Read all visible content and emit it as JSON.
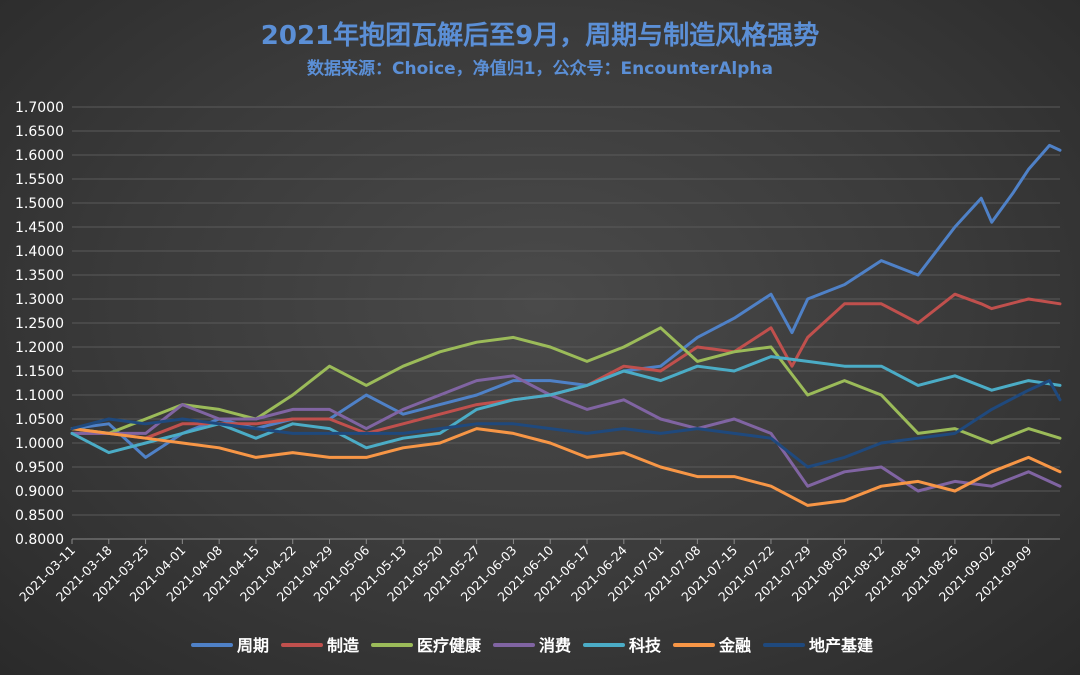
{
  "chart_data": {
    "type": "line",
    "title": "2021年抱团瓦解后至9月，周期与制造风格强势",
    "subtitle": "数据来源：Choice，净值归1，公众号：EncounterAlpha",
    "ylim": [
      0.8,
      1.7
    ],
    "yticks": [
      "0.8000",
      "0.8500",
      "0.9000",
      "0.9500",
      "1.0000",
      "1.0500",
      "1.1000",
      "1.1500",
      "1.2000",
      "1.2500",
      "1.3000",
      "1.3500",
      "1.4000",
      "1.4500",
      "1.5000",
      "1.5500",
      "1.6000",
      "1.6500",
      "1.7000"
    ],
    "x_start": "2021-03-11",
    "x_end": "2021-09-15",
    "xticks": [
      "2021-03-11",
      "2021-03-18",
      "2021-03-25",
      "2021-04-01",
      "2021-04-08",
      "2021-04-15",
      "2021-04-22",
      "2021-04-29",
      "2021-05-06",
      "2021-05-13",
      "2021-05-20",
      "2021-05-27",
      "2021-06-03",
      "2021-06-10",
      "2021-06-17",
      "2021-06-24",
      "2021-07-01",
      "2021-07-08",
      "2021-07-15",
      "2021-07-22",
      "2021-07-29",
      "2021-08-05",
      "2021-08-12",
      "2021-08-19",
      "2021-08-26",
      "2021-09-02",
      "2021-09-09"
    ],
    "legend_position": "bottom",
    "grid": true,
    "series": [
      {
        "name": "周期",
        "color": "#4f81c7",
        "points": [
          [
            "2021-03-11",
            1.03
          ],
          [
            "2021-03-18",
            1.04
          ],
          [
            "2021-03-25",
            0.97
          ],
          [
            "2021-04-01",
            1.02
          ],
          [
            "2021-04-08",
            1.05
          ],
          [
            "2021-04-15",
            1.03
          ],
          [
            "2021-04-22",
            1.05
          ],
          [
            "2021-04-29",
            1.05
          ],
          [
            "2021-05-06",
            1.1
          ],
          [
            "2021-05-13",
            1.06
          ],
          [
            "2021-05-20",
            1.08
          ],
          [
            "2021-05-27",
            1.1
          ],
          [
            "2021-06-03",
            1.13
          ],
          [
            "2021-06-10",
            1.13
          ],
          [
            "2021-06-17",
            1.12
          ],
          [
            "2021-06-24",
            1.15
          ],
          [
            "2021-07-01",
            1.16
          ],
          [
            "2021-07-08",
            1.22
          ],
          [
            "2021-07-15",
            1.26
          ],
          [
            "2021-07-22",
            1.31
          ],
          [
            "2021-07-26",
            1.23
          ],
          [
            "2021-07-29",
            1.3
          ],
          [
            "2021-08-05",
            1.33
          ],
          [
            "2021-08-12",
            1.38
          ],
          [
            "2021-08-19",
            1.35
          ],
          [
            "2021-08-26",
            1.45
          ],
          [
            "2021-08-31",
            1.51
          ],
          [
            "2021-09-02",
            1.46
          ],
          [
            "2021-09-06",
            1.52
          ],
          [
            "2021-09-09",
            1.57
          ],
          [
            "2021-09-13",
            1.62
          ],
          [
            "2021-09-15",
            1.61
          ]
        ]
      },
      {
        "name": "制造",
        "color": "#c0504d",
        "points": [
          [
            "2021-03-11",
            1.02
          ],
          [
            "2021-03-18",
            1.02
          ],
          [
            "2021-03-25",
            1.01
          ],
          [
            "2021-04-01",
            1.04
          ],
          [
            "2021-04-08",
            1.04
          ],
          [
            "2021-04-15",
            1.04
          ],
          [
            "2021-04-22",
            1.05
          ],
          [
            "2021-04-29",
            1.05
          ],
          [
            "2021-05-06",
            1.02
          ],
          [
            "2021-05-13",
            1.04
          ],
          [
            "2021-05-20",
            1.06
          ],
          [
            "2021-05-27",
            1.08
          ],
          [
            "2021-06-03",
            1.09
          ],
          [
            "2021-06-10",
            1.1
          ],
          [
            "2021-06-17",
            1.12
          ],
          [
            "2021-06-24",
            1.16
          ],
          [
            "2021-07-01",
            1.15
          ],
          [
            "2021-07-08",
            1.2
          ],
          [
            "2021-07-15",
            1.19
          ],
          [
            "2021-07-22",
            1.24
          ],
          [
            "2021-07-26",
            1.16
          ],
          [
            "2021-07-29",
            1.22
          ],
          [
            "2021-08-05",
            1.29
          ],
          [
            "2021-08-12",
            1.29
          ],
          [
            "2021-08-19",
            1.25
          ],
          [
            "2021-08-26",
            1.31
          ],
          [
            "2021-08-31",
            1.29
          ],
          [
            "2021-09-02",
            1.28
          ],
          [
            "2021-09-09",
            1.3
          ],
          [
            "2021-09-15",
            1.29
          ]
        ]
      },
      {
        "name": "医疗健康",
        "color": "#9bbb59",
        "points": [
          [
            "2021-03-11",
            1.03
          ],
          [
            "2021-03-18",
            1.02
          ],
          [
            "2021-03-25",
            1.05
          ],
          [
            "2021-04-01",
            1.08
          ],
          [
            "2021-04-08",
            1.07
          ],
          [
            "2021-04-15",
            1.05
          ],
          [
            "2021-04-22",
            1.1
          ],
          [
            "2021-04-29",
            1.16
          ],
          [
            "2021-05-06",
            1.12
          ],
          [
            "2021-05-13",
            1.16
          ],
          [
            "2021-05-20",
            1.19
          ],
          [
            "2021-05-27",
            1.21
          ],
          [
            "2021-06-03",
            1.22
          ],
          [
            "2021-06-10",
            1.2
          ],
          [
            "2021-06-17",
            1.17
          ],
          [
            "2021-06-24",
            1.2
          ],
          [
            "2021-07-01",
            1.24
          ],
          [
            "2021-07-08",
            1.17
          ],
          [
            "2021-07-15",
            1.19
          ],
          [
            "2021-07-22",
            1.2
          ],
          [
            "2021-07-29",
            1.1
          ],
          [
            "2021-08-05",
            1.13
          ],
          [
            "2021-08-12",
            1.1
          ],
          [
            "2021-08-19",
            1.02
          ],
          [
            "2021-08-26",
            1.03
          ],
          [
            "2021-09-02",
            1.0
          ],
          [
            "2021-09-09",
            1.03
          ],
          [
            "2021-09-15",
            1.01
          ]
        ]
      },
      {
        "name": "消费",
        "color": "#8064a2",
        "points": [
          [
            "2021-03-11",
            1.02
          ],
          [
            "2021-03-18",
            1.02
          ],
          [
            "2021-03-25",
            1.02
          ],
          [
            "2021-04-01",
            1.08
          ],
          [
            "2021-04-08",
            1.05
          ],
          [
            "2021-04-15",
            1.05
          ],
          [
            "2021-04-22",
            1.07
          ],
          [
            "2021-04-29",
            1.07
          ],
          [
            "2021-05-06",
            1.03
          ],
          [
            "2021-05-13",
            1.07
          ],
          [
            "2021-05-20",
            1.1
          ],
          [
            "2021-05-27",
            1.13
          ],
          [
            "2021-06-03",
            1.14
          ],
          [
            "2021-06-10",
            1.1
          ],
          [
            "2021-06-17",
            1.07
          ],
          [
            "2021-06-24",
            1.09
          ],
          [
            "2021-07-01",
            1.05
          ],
          [
            "2021-07-08",
            1.03
          ],
          [
            "2021-07-15",
            1.05
          ],
          [
            "2021-07-22",
            1.02
          ],
          [
            "2021-07-29",
            0.91
          ],
          [
            "2021-08-05",
            0.94
          ],
          [
            "2021-08-12",
            0.95
          ],
          [
            "2021-08-19",
            0.9
          ],
          [
            "2021-08-26",
            0.92
          ],
          [
            "2021-09-02",
            0.91
          ],
          [
            "2021-09-09",
            0.94
          ],
          [
            "2021-09-15",
            0.91
          ]
        ]
      },
      {
        "name": "科技",
        "color": "#4bacc6",
        "points": [
          [
            "2021-03-11",
            1.02
          ],
          [
            "2021-03-18",
            0.98
          ],
          [
            "2021-03-25",
            1.0
          ],
          [
            "2021-04-01",
            1.02
          ],
          [
            "2021-04-08",
            1.04
          ],
          [
            "2021-04-15",
            1.01
          ],
          [
            "2021-04-22",
            1.04
          ],
          [
            "2021-04-29",
            1.03
          ],
          [
            "2021-05-06",
            0.99
          ],
          [
            "2021-05-13",
            1.01
          ],
          [
            "2021-05-20",
            1.02
          ],
          [
            "2021-05-27",
            1.07
          ],
          [
            "2021-06-03",
            1.09
          ],
          [
            "2021-06-10",
            1.1
          ],
          [
            "2021-06-17",
            1.12
          ],
          [
            "2021-06-24",
            1.15
          ],
          [
            "2021-07-01",
            1.13
          ],
          [
            "2021-07-08",
            1.16
          ],
          [
            "2021-07-15",
            1.15
          ],
          [
            "2021-07-22",
            1.18
          ],
          [
            "2021-07-29",
            1.17
          ],
          [
            "2021-08-05",
            1.16
          ],
          [
            "2021-08-12",
            1.16
          ],
          [
            "2021-08-19",
            1.12
          ],
          [
            "2021-08-26",
            1.14
          ],
          [
            "2021-09-02",
            1.11
          ],
          [
            "2021-09-09",
            1.13
          ],
          [
            "2021-09-15",
            1.12
          ]
        ]
      },
      {
        "name": "金融",
        "color": "#f79646",
        "points": [
          [
            "2021-03-11",
            1.03
          ],
          [
            "2021-03-18",
            1.02
          ],
          [
            "2021-03-25",
            1.01
          ],
          [
            "2021-04-01",
            1.0
          ],
          [
            "2021-04-08",
            0.99
          ],
          [
            "2021-04-15",
            0.97
          ],
          [
            "2021-04-22",
            0.98
          ],
          [
            "2021-04-29",
            0.97
          ],
          [
            "2021-05-06",
            0.97
          ],
          [
            "2021-05-13",
            0.99
          ],
          [
            "2021-05-20",
            1.0
          ],
          [
            "2021-05-27",
            1.03
          ],
          [
            "2021-06-03",
            1.02
          ],
          [
            "2021-06-10",
            1.0
          ],
          [
            "2021-06-17",
            0.97
          ],
          [
            "2021-06-24",
            0.98
          ],
          [
            "2021-07-01",
            0.95
          ],
          [
            "2021-07-08",
            0.93
          ],
          [
            "2021-07-15",
            0.93
          ],
          [
            "2021-07-22",
            0.91
          ],
          [
            "2021-07-29",
            0.87
          ],
          [
            "2021-08-05",
            0.88
          ],
          [
            "2021-08-12",
            0.91
          ],
          [
            "2021-08-19",
            0.92
          ],
          [
            "2021-08-26",
            0.9
          ],
          [
            "2021-09-02",
            0.94
          ],
          [
            "2021-09-09",
            0.97
          ],
          [
            "2021-09-15",
            0.94
          ]
        ]
      },
      {
        "name": "地产基建",
        "color": "#1f497d",
        "points": [
          [
            "2021-03-11",
            1.03
          ],
          [
            "2021-03-18",
            1.05
          ],
          [
            "2021-03-25",
            1.04
          ],
          [
            "2021-04-01",
            1.05
          ],
          [
            "2021-04-08",
            1.04
          ],
          [
            "2021-04-15",
            1.03
          ],
          [
            "2021-04-22",
            1.02
          ],
          [
            "2021-04-29",
            1.02
          ],
          [
            "2021-05-06",
            1.02
          ],
          [
            "2021-05-13",
            1.02
          ],
          [
            "2021-05-20",
            1.03
          ],
          [
            "2021-05-27",
            1.04
          ],
          [
            "2021-06-03",
            1.04
          ],
          [
            "2021-06-10",
            1.03
          ],
          [
            "2021-06-17",
            1.02
          ],
          [
            "2021-06-24",
            1.03
          ],
          [
            "2021-07-01",
            1.02
          ],
          [
            "2021-07-08",
            1.03
          ],
          [
            "2021-07-15",
            1.02
          ],
          [
            "2021-07-22",
            1.01
          ],
          [
            "2021-07-29",
            0.95
          ],
          [
            "2021-08-05",
            0.97
          ],
          [
            "2021-08-12",
            1.0
          ],
          [
            "2021-08-19",
            1.01
          ],
          [
            "2021-08-26",
            1.02
          ],
          [
            "2021-09-02",
            1.07
          ],
          [
            "2021-09-09",
            1.11
          ],
          [
            "2021-09-13",
            1.13
          ],
          [
            "2021-09-15",
            1.09
          ]
        ]
      }
    ]
  }
}
